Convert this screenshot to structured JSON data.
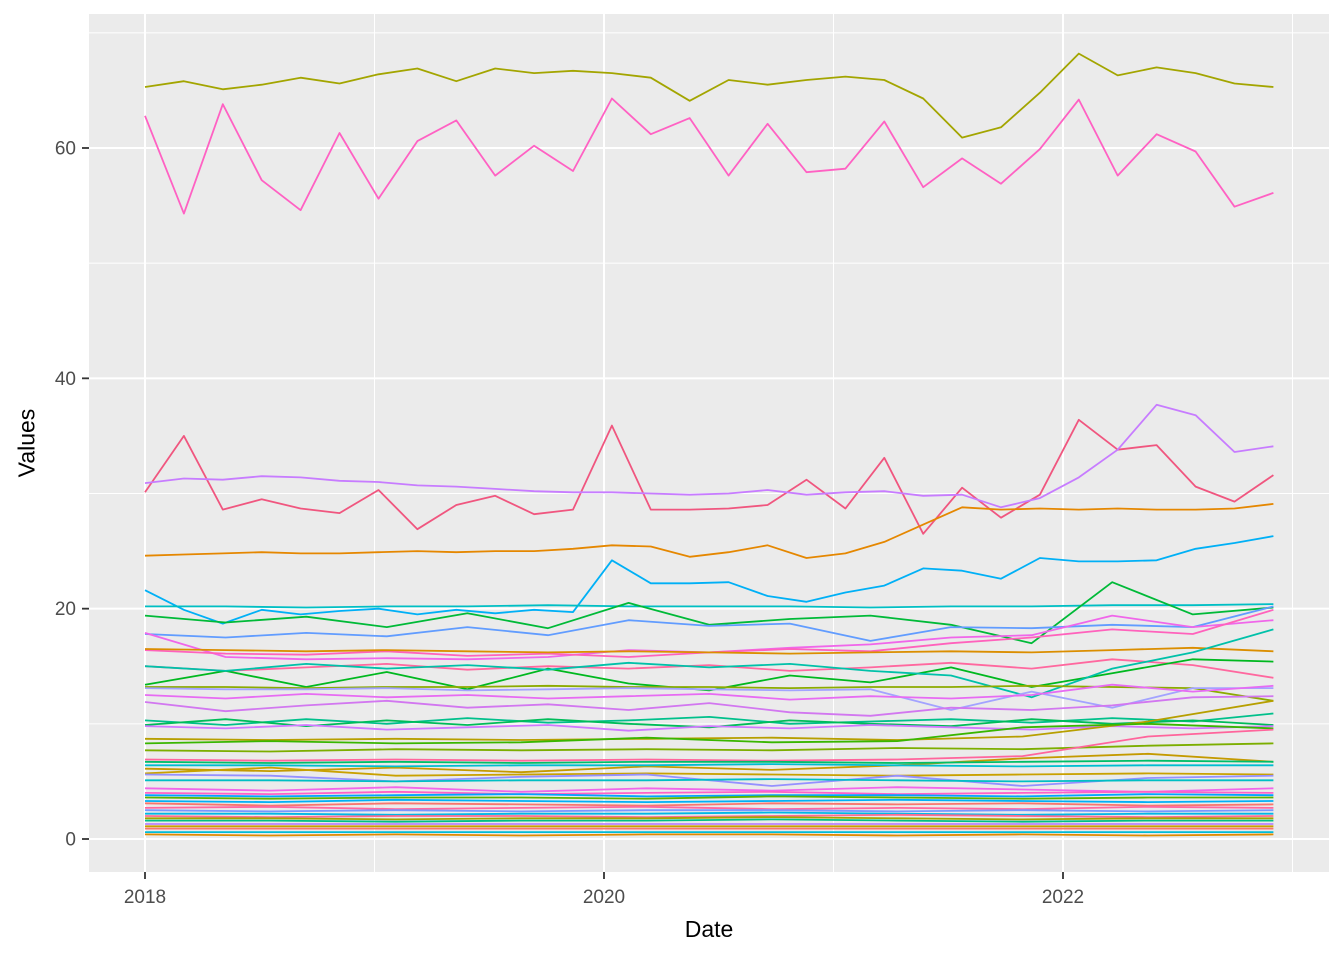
{
  "figure": {
    "x_axis_title": "Date",
    "y_axis_title": "Values"
  },
  "chart_data": {
    "type": "line",
    "title": "",
    "xlabel": "Date",
    "ylabel": "Values",
    "legend": "none",
    "grid": "on",
    "panel_background": "#EBEBEB",
    "grid_color": "#FFFFFF",
    "tick_label_color": "#4D4D4D",
    "tick_mark_color": "#333333",
    "x_axis": {
      "start": "2018-01",
      "end": "2022-12",
      "months_total": 59,
      "ticks": [
        {
          "label": "2018",
          "month": 0
        },
        {
          "label": "2020",
          "month": 24
        },
        {
          "label": "2022",
          "month": 48
        }
      ],
      "minor_tick_months": [
        12,
        36,
        60
      ]
    },
    "y_axis": {
      "ticks": [
        0,
        20,
        40,
        60
      ],
      "minor_ticks": [
        10,
        30,
        50,
        70
      ],
      "display_range": [
        -2.9,
        71.6
      ]
    },
    "series": [
      {
        "color": "#A3A500",
        "values": [
          65.3,
          65.8,
          65.1,
          65.5,
          66.1,
          65.6,
          66.4,
          66.9,
          65.8,
          66.9,
          66.5,
          66.7,
          66.5,
          66.1,
          64.1,
          65.9,
          65.5,
          65.9,
          66.2,
          65.9,
          64.3,
          60.9,
          61.8,
          64.8,
          68.2,
          66.3,
          67.0,
          66.5,
          65.6,
          65.3
        ]
      },
      {
        "color": "#FF61C3",
        "values": [
          62.8,
          54.3,
          63.8,
          57.2,
          54.6,
          61.3,
          55.6,
          60.6,
          62.4,
          57.6,
          60.2,
          58.0,
          64.3,
          61.2,
          62.6,
          57.6,
          62.1,
          57.9,
          58.2,
          62.3,
          56.6,
          59.1,
          56.9,
          59.9,
          64.2,
          57.6,
          61.2,
          59.7,
          54.9,
          56.1
        ]
      },
      {
        "color": "#F0567F",
        "values": [
          30.1,
          35.0,
          28.6,
          29.5,
          28.7,
          28.3,
          30.3,
          26.9,
          29.0,
          29.8,
          28.2,
          28.6,
          35.9,
          28.6,
          28.6,
          28.7,
          29.0,
          31.2,
          28.7,
          33.1,
          26.5,
          30.5,
          27.9,
          29.9,
          36.4,
          33.8,
          34.2,
          30.6,
          29.3,
          31.6
        ]
      },
      {
        "color": "#C77CFF",
        "values": [
          30.9,
          31.3,
          31.2,
          31.5,
          31.4,
          31.1,
          31.0,
          30.7,
          30.6,
          30.4,
          30.2,
          30.1,
          30.1,
          30.0,
          29.9,
          30.0,
          30.3,
          29.9,
          30.1,
          30.2,
          29.8,
          29.9,
          28.8,
          29.6,
          31.4,
          33.8,
          37.7,
          36.8,
          33.6,
          34.1
        ]
      },
      {
        "color": "#E58700",
        "values": [
          24.6,
          24.7,
          24.8,
          24.9,
          24.8,
          24.8,
          24.9,
          25.0,
          24.9,
          25.0,
          25.0,
          25.2,
          25.5,
          25.4,
          24.5,
          24.9,
          25.5,
          24.4,
          24.8,
          25.8,
          27.3,
          28.8,
          28.6,
          28.7,
          28.6,
          28.7,
          28.6,
          28.6,
          28.7,
          29.1
        ]
      },
      {
        "color": "#00B0F6",
        "values": [
          21.6,
          19.9,
          18.7,
          19.9,
          19.5,
          19.8,
          20.0,
          19.5,
          19.9,
          19.6,
          19.9,
          19.7,
          24.2,
          22.2,
          22.2,
          22.3,
          21.1,
          20.6,
          21.4,
          22.0,
          23.5,
          23.3,
          22.6,
          24.4,
          24.1,
          24.1,
          24.2,
          25.2,
          25.7,
          26.3
        ]
      },
      {
        "color": "#00BFC4",
        "values": [
          20.2,
          20.2,
          20.1,
          20.2,
          20.2,
          20.3,
          20.2,
          20.2,
          20.2,
          20.1,
          20.2,
          20.2,
          20.3,
          20.3,
          20.4
        ]
      },
      {
        "color": "#00BA38",
        "values": [
          19.4,
          18.8,
          19.3,
          18.4,
          19.6,
          18.3,
          20.5,
          18.6,
          19.1,
          19.4,
          18.6,
          17.0,
          22.3,
          19.5,
          20.1
        ]
      },
      {
        "color": "#619CFF",
        "values": [
          17.8,
          17.5,
          17.9,
          17.6,
          18.4,
          17.7,
          19.0,
          18.5,
          18.7,
          17.2,
          18.4,
          18.3,
          18.6,
          18.4,
          20.2
        ]
      },
      {
        "color": "#F066EA",
        "values": [
          17.9,
          15.8,
          15.6,
          15.7,
          15.6,
          15.8,
          16.4,
          16.2,
          16.6,
          16.9,
          17.5,
          17.7,
          19.4,
          18.4,
          19.0
        ]
      },
      {
        "color": "#FF62BC",
        "values": [
          16.4,
          16.1,
          16.0,
          16.3,
          15.9,
          16.1,
          15.8,
          16.2,
          16.5,
          16.3,
          17.0,
          17.5,
          18.2,
          17.8,
          19.9
        ]
      },
      {
        "color": "#DB8E00",
        "values": [
          16.5,
          16.4,
          16.3,
          16.4,
          16.3,
          16.2,
          16.3,
          16.2,
          16.1,
          16.2,
          16.3,
          16.2,
          16.4,
          16.6,
          16.3
        ]
      },
      {
        "color": "#FF689F",
        "values": [
          15.0,
          14.6,
          14.9,
          15.2,
          14.7,
          15.0,
          14.8,
          15.1,
          14.6,
          14.9,
          15.3,
          14.8,
          15.6,
          15.1,
          14.0
        ]
      },
      {
        "color": "#00B81F",
        "values": [
          13.4,
          14.6,
          13.2,
          14.5,
          13.0,
          14.8,
          13.5,
          12.9,
          14.2,
          13.6,
          14.9,
          13.2,
          14.4,
          15.6,
          15.4
        ]
      },
      {
        "color": "#00C1A9",
        "values": [
          15.0,
          14.6,
          15.2,
          14.8,
          15.1,
          14.7,
          15.3,
          14.9,
          15.2,
          14.6,
          14.2,
          12.3,
          14.8,
          16.2,
          18.2
        ]
      },
      {
        "color": "#8CAB00",
        "values": [
          13.2,
          13.2,
          13.1,
          13.2,
          13.2,
          13.3,
          13.2,
          13.2,
          13.1,
          13.2,
          13.2,
          13.3,
          13.2,
          13.1,
          12.0
        ]
      },
      {
        "color": "#A3A3FF",
        "values": [
          13.1,
          13.0,
          13.0,
          13.1,
          12.9,
          13.0,
          13.1,
          13.0,
          12.9,
          13.0,
          11.2,
          12.8,
          11.4,
          13.1,
          13.1
        ]
      },
      {
        "color": "#E76BF3",
        "values": [
          12.5,
          12.2,
          12.6,
          12.3,
          12.5,
          12.2,
          12.4,
          12.6,
          12.1,
          12.4,
          12.2,
          12.5,
          13.4,
          12.8,
          13.3
        ]
      },
      {
        "color": "#D277F0",
        "values": [
          11.9,
          11.1,
          11.6,
          12.0,
          11.4,
          11.7,
          11.2,
          11.8,
          11.0,
          10.7,
          11.4,
          11.2,
          11.6,
          12.3,
          12.4
        ]
      },
      {
        "color": "#00C08B",
        "values": [
          10.3,
          9.9,
          10.4,
          10.0,
          10.5,
          10.1,
          10.3,
          10.6,
          10.0,
          10.2,
          10.4,
          10.1,
          10.5,
          10.2,
          10.9
        ]
      },
      {
        "color": "#00BC59",
        "values": [
          9.9,
          10.4,
          9.8,
          10.3,
          9.9,
          10.4,
          10.0,
          9.7,
          10.3,
          10.0,
          9.8,
          10.4,
          10.0,
          10.3,
          9.9
        ]
      },
      {
        "color": "#CF78FF",
        "values": [
          9.8,
          9.6,
          9.9,
          9.5,
          9.7,
          9.9,
          9.4,
          9.8,
          9.6,
          9.9,
          9.7,
          9.5,
          9.8,
          9.6,
          9.8
        ]
      },
      {
        "color": "#B79F00",
        "values": [
          8.7,
          8.6,
          8.7,
          8.6,
          8.7,
          8.8,
          8.6,
          8.9,
          10.2,
          12.0
        ]
      },
      {
        "color": "#39B600",
        "values": [
          8.3,
          8.5,
          8.3,
          8.4,
          8.8,
          8.4,
          8.5,
          9.7,
          10.0,
          9.6
        ]
      },
      {
        "color": "#7CAE00",
        "values": [
          7.7,
          7.6,
          7.8,
          7.7,
          7.8,
          7.7,
          7.9,
          7.8,
          8.1,
          8.3
        ]
      },
      {
        "color": "#FF659C",
        "values": [
          6.9,
          6.8,
          6.9,
          6.8,
          6.9,
          6.8,
          6.9,
          7.2,
          8.9,
          9.5
        ]
      },
      {
        "color": "#C49A00",
        "values": [
          6.1,
          5.9,
          6.2,
          5.8,
          6.3,
          6.0,
          6.4,
          7.0,
          7.4,
          6.7
        ]
      },
      {
        "color": "#00BE67",
        "values": [
          6.7,
          6.6,
          6.7,
          6.6,
          6.7,
          6.7,
          6.6,
          6.7,
          6.8,
          6.7
        ]
      },
      {
        "color": "#00BDD0",
        "values": [
          6.4,
          6.4,
          6.3,
          6.4,
          6.4,
          6.5,
          6.4,
          6.3,
          6.4,
          6.4
        ]
      },
      {
        "color": "#C9A100",
        "values": [
          5.7,
          6.2,
          5.5,
          5.6,
          5.7,
          5.6,
          5.5,
          5.6,
          5.7,
          5.6
        ]
      },
      {
        "color": "#9590FF",
        "values": [
          5.6,
          5.5,
          5.0,
          5.4,
          5.6,
          4.6,
          5.5,
          4.6,
          5.3,
          5.5
        ]
      },
      {
        "color": "#00BFC4",
        "values": [
          5.1,
          5.1,
          5.0,
          5.1,
          5.1,
          5.2,
          5.1,
          5.0,
          5.1,
          5.1
        ]
      },
      {
        "color": "#F066EA",
        "values": [
          4.4,
          4.2,
          4.5,
          4.1,
          4.4,
          4.2,
          4.5,
          4.3,
          4.1,
          4.4
        ]
      },
      {
        "color": "#FF61C7",
        "values": [
          4.0,
          3.9,
          4.1,
          3.9,
          4.0,
          4.1,
          3.9,
          4.0,
          4.1,
          4.0
        ]
      },
      {
        "color": "#00A5FF",
        "values": [
          3.8,
          3.7,
          3.8,
          3.9,
          3.7,
          3.8,
          3.8,
          3.7,
          3.9,
          3.8
        ]
      },
      {
        "color": "#5BB300",
        "values": [
          3.6,
          3.5,
          3.6,
          3.6,
          3.5,
          3.7,
          3.6,
          3.5,
          3.6,
          3.6
        ]
      },
      {
        "color": "#00B0F6",
        "values": [
          3.3,
          3.2,
          3.4,
          3.3,
          3.2,
          3.3,
          3.4,
          3.3,
          3.2,
          3.3
        ]
      },
      {
        "color": "#F8766D",
        "values": [
          3.1,
          2.9,
          3.1,
          3.0,
          2.9,
          3.1,
          3.0,
          3.1,
          2.9,
          3.0
        ]
      },
      {
        "color": "#FF689F",
        "values": [
          2.7,
          2.8,
          2.6,
          2.7,
          2.8,
          2.6,
          2.7,
          2.6,
          2.8,
          2.7
        ]
      },
      {
        "color": "#7997FF",
        "values": [
          2.5,
          2.4,
          2.5,
          2.4,
          2.5,
          2.5,
          2.4,
          2.5,
          2.4,
          2.5
        ]
      },
      {
        "color": "#00B8E5",
        "values": [
          2.2,
          2.2,
          2.1,
          2.2,
          2.2,
          2.3,
          2.2,
          2.1,
          2.2,
          2.2
        ]
      },
      {
        "color": "#FF6C91",
        "values": [
          2.0,
          1.9,
          2.0,
          2.0,
          1.9,
          2.0,
          2.1,
          2.0,
          1.9,
          2.0
        ]
      },
      {
        "color": "#A3A500",
        "values": [
          1.8,
          1.8,
          1.7,
          1.8,
          1.8,
          1.9,
          1.8,
          1.7,
          1.8,
          1.8
        ]
      },
      {
        "color": "#00C085",
        "values": [
          1.6,
          1.6,
          1.5,
          1.6,
          1.6,
          1.7,
          1.6,
          1.5,
          1.6,
          1.6
        ]
      },
      {
        "color": "#B983FF",
        "values": [
          1.3,
          1.3,
          1.3,
          1.3,
          1.3,
          1.3,
          1.3,
          1.3,
          1.3,
          1.3
        ]
      },
      {
        "color": "#C9A100",
        "values": [
          1.1,
          1.1,
          1.1,
          1.1,
          1.1,
          1.1,
          1.1,
          1.1,
          1.1,
          1.1
        ]
      },
      {
        "color": "#F8766D",
        "values": [
          0.9,
          0.9,
          0.9,
          0.9,
          0.9,
          0.9,
          0.9,
          0.9,
          0.9,
          0.9
        ]
      },
      {
        "color": "#00BCD8",
        "values": [
          0.6,
          0.6,
          0.6,
          0.6,
          0.6,
          0.6,
          0.6,
          0.6,
          0.6,
          0.6
        ]
      },
      {
        "color": "#DE8C00",
        "values": [
          0.4,
          0.3,
          0.4,
          0.3,
          0.4,
          0.4,
          0.3,
          0.4,
          0.3,
          0.4
        ]
      }
    ]
  }
}
